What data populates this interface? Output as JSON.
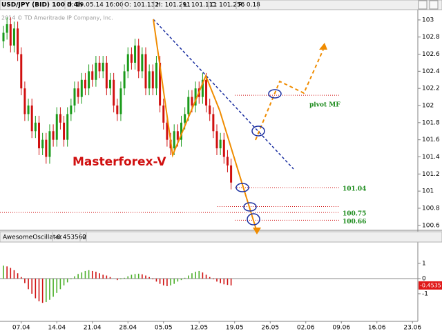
{
  "header": {
    "symbol": "USD/JPY (BID) 100 d 4h",
    "date": "D: 19.05.14 16:00",
    "open": "O: 101.132",
    "high": "H: 101.291",
    "low": "L: 101.111",
    "close": "C: 101.256",
    "range": "R: 0.18"
  },
  "watermark": "2014 © TD Ameritrade IP Company, Inc.",
  "chart_data": [
    {
      "type": "candlestick",
      "annotation": "Masterforex-V",
      "pivot_label": "pivot MF",
      "levels": [
        102.12,
        101.04,
        100.82,
        100.75,
        100.66
      ],
      "labeled_levels": [
        1,
        3,
        4
      ],
      "up_color": "#1a9a1a",
      "down_color": "#d01010",
      "ylim": [
        100.55,
        103.12
      ],
      "yticks": [
        103,
        102.8,
        102.6,
        102.4,
        102.2,
        102,
        101.8,
        101.6,
        101.4,
        101.2,
        101,
        100.8,
        100.6
      ],
      "grid": false,
      "categories": [
        null,
        null,
        null,
        null,
        null,
        "07.04",
        null,
        null,
        null,
        null,
        null,
        null,
        null,
        null,
        null,
        "14.04",
        null,
        null,
        null,
        null,
        null,
        null,
        null,
        null,
        null,
        "21.04",
        null,
        null,
        null,
        null,
        null,
        null,
        null,
        null,
        null,
        "28.04",
        null,
        null,
        null,
        null,
        null,
        null,
        null,
        null,
        null,
        "05.05",
        null,
        null,
        null,
        null,
        null,
        null,
        null,
        null,
        null,
        "12.05",
        null,
        null,
        null,
        null,
        null,
        null,
        null,
        null,
        null,
        "19.05",
        null,
        null,
        null,
        null,
        null,
        null,
        null,
        null,
        null,
        "26.05",
        null,
        null,
        null,
        null,
        null,
        null,
        null,
        null,
        null,
        "02.06",
        null,
        null,
        null,
        null,
        null,
        null,
        null,
        null,
        null,
        "09.06",
        null,
        null,
        null,
        null,
        null,
        null,
        null,
        null,
        null,
        "16.06",
        null,
        null,
        null,
        null,
        null,
        null,
        null,
        null,
        null,
        "23.06"
      ],
      "open": [
        102.75,
        102.85,
        102.95,
        102.7,
        102.9,
        102.6,
        102.2,
        101.9,
        102.0,
        101.7,
        101.8,
        101.5,
        101.6,
        101.4,
        101.7,
        101.6,
        101.9,
        101.8,
        101.6,
        101.9,
        102.0,
        102.2,
        102.1,
        102.3,
        102.2,
        102.4,
        102.3,
        102.5,
        102.4,
        102.5,
        102.2,
        102.3,
        102.0,
        101.9,
        102.2,
        102.4,
        102.6,
        102.5,
        102.7,
        102.4,
        102.6,
        102.2,
        102.4,
        102.2,
        102.5,
        102.0,
        101.8,
        101.6,
        101.5,
        101.7,
        101.6,
        101.8,
        101.9,
        102.1,
        102.0,
        102.2,
        102.1,
        102.3,
        102.0,
        101.9,
        101.7,
        101.5,
        101.6,
        101.4,
        101.3,
        null,
        null,
        null,
        null,
        null,
        null,
        null,
        null,
        null,
        null,
        null,
        null,
        null,
        null,
        null,
        null,
        null,
        null,
        null,
        null,
        null,
        null,
        null,
        null,
        null,
        null,
        null,
        null,
        null,
        null,
        null,
        null,
        null,
        null,
        null,
        null,
        null,
        null,
        null,
        null,
        null,
        null,
        null,
        null,
        null,
        null,
        null,
        null,
        null,
        null,
        null
      ],
      "high": [
        102.93,
        103.03,
        103.03,
        102.98,
        102.98,
        102.68,
        102.28,
        102.08,
        102.08,
        101.88,
        101.88,
        101.68,
        101.68,
        101.78,
        101.78,
        101.98,
        101.98,
        101.88,
        101.98,
        102.08,
        102.28,
        102.28,
        102.38,
        102.38,
        102.48,
        102.48,
        102.58,
        102.58,
        102.58,
        102.58,
        102.38,
        102.38,
        102.08,
        102.28,
        102.48,
        102.68,
        102.68,
        102.78,
        102.78,
        102.68,
        102.68,
        102.48,
        102.48,
        102.58,
        102.58,
        102.08,
        101.88,
        101.68,
        101.78,
        101.78,
        101.88,
        101.98,
        102.18,
        102.18,
        102.28,
        102.28,
        102.38,
        102.38,
        102.08,
        101.98,
        101.78,
        101.68,
        101.68,
        101.48,
        101.38,
        null,
        null,
        null,
        null,
        null,
        null,
        null,
        null,
        null,
        null,
        null,
        null,
        null,
        null,
        null,
        null,
        null,
        null,
        null,
        null,
        null,
        null,
        null,
        null,
        null,
        null,
        null,
        null,
        null,
        null,
        null,
        null,
        null,
        null,
        null,
        null,
        null,
        null,
        null,
        null,
        null,
        null,
        null,
        null,
        null,
        null,
        null,
        null,
        null,
        null,
        null
      ],
      "low": [
        102.67,
        102.77,
        102.62,
        102.62,
        102.52,
        102.12,
        101.82,
        101.82,
        101.62,
        101.62,
        101.42,
        101.42,
        101.32,
        101.32,
        101.52,
        101.52,
        101.72,
        101.52,
        101.52,
        101.82,
        101.92,
        102.02,
        102.02,
        102.12,
        102.12,
        102.22,
        102.22,
        102.32,
        102.32,
        102.12,
        102.12,
        101.92,
        101.82,
        101.82,
        102.12,
        102.32,
        102.42,
        102.42,
        102.32,
        102.32,
        102.12,
        102.12,
        102.12,
        102.12,
        101.92,
        101.72,
        101.52,
        101.42,
        101.42,
        101.52,
        101.52,
        101.72,
        101.82,
        101.92,
        101.92,
        102.02,
        102.02,
        101.92,
        101.82,
        101.62,
        101.42,
        101.42,
        101.32,
        101.22,
        101.02,
        null,
        null,
        null,
        null,
        null,
        null,
        null,
        null,
        null,
        null,
        null,
        null,
        null,
        null,
        null,
        null,
        null,
        null,
        null,
        null,
        null,
        null,
        null,
        null,
        null,
        null,
        null,
        null,
        null,
        null,
        null,
        null,
        null,
        null,
        null,
        null,
        null,
        null,
        null,
        null,
        null,
        null,
        null,
        null,
        null,
        null,
        null,
        null,
        null,
        null,
        null
      ],
      "close": [
        102.85,
        102.95,
        102.7,
        102.9,
        102.6,
        102.2,
        101.9,
        102.0,
        101.7,
        101.8,
        101.5,
        101.6,
        101.4,
        101.7,
        101.6,
        101.9,
        101.8,
        101.6,
        101.9,
        102.0,
        102.2,
        102.1,
        102.3,
        102.2,
        102.4,
        102.3,
        102.5,
        102.4,
        102.5,
        102.2,
        102.3,
        102.0,
        101.9,
        102.2,
        102.4,
        102.6,
        102.5,
        102.7,
        102.4,
        102.6,
        102.2,
        102.4,
        102.2,
        102.5,
        102.0,
        101.8,
        101.6,
        101.5,
        101.7,
        101.6,
        101.8,
        101.9,
        102.1,
        102.0,
        102.2,
        102.1,
        102.3,
        102.0,
        101.9,
        101.7,
        101.5,
        101.6,
        101.4,
        101.3,
        101.1,
        null,
        null,
        null,
        null,
        null,
        null,
        null,
        null,
        null,
        null,
        null,
        null,
        null,
        null,
        null,
        null,
        null,
        null,
        null,
        null,
        null,
        null,
        null,
        null,
        null,
        null,
        null,
        null,
        null,
        null,
        null,
        null,
        null,
        null,
        null,
        null,
        null,
        null,
        null,
        null,
        null,
        null,
        null,
        null,
        null,
        null,
        null,
        null,
        null,
        null,
        null
      ]
    },
    {
      "type": "bar",
      "title": "AwesomeOscillator",
      "indicator_value": -0.453562,
      "indicator_extra": 0,
      "up_color": "#4caf2a",
      "down_color": "#d01010",
      "marker_color": "#e01818",
      "ylim": [
        -2.82,
        2.36
      ],
      "yticks": [
        1,
        0,
        -1
      ],
      "values": [
        0.85,
        0.8,
        0.7,
        0.55,
        0.35,
        0.1,
        -0.3,
        -0.7,
        -1.0,
        -1.3,
        -1.5,
        -1.6,
        -1.55,
        -1.4,
        -1.2,
        -0.95,
        -0.7,
        -0.45,
        -0.25,
        -0.05,
        0.15,
        0.3,
        0.4,
        0.5,
        0.55,
        0.5,
        0.45,
        0.35,
        0.25,
        0.2,
        0.1,
        0.0,
        -0.1,
        -0.05,
        0.05,
        0.15,
        0.25,
        0.3,
        0.32,
        0.28,
        0.2,
        0.1,
        -0.05,
        -0.2,
        -0.35,
        -0.45,
        -0.5,
        -0.45,
        -0.35,
        -0.2,
        -0.1,
        0.05,
        0.2,
        0.35,
        0.45,
        0.5,
        0.4,
        0.25,
        0.1,
        -0.05,
        -0.2,
        -0.3,
        -0.38,
        -0.42,
        -0.4535,
        null,
        null,
        null,
        null,
        null,
        null,
        null,
        null,
        null,
        null,
        null,
        null,
        null,
        null,
        null,
        null,
        null,
        null,
        null,
        null,
        null,
        null,
        null,
        null,
        null,
        null,
        null,
        null,
        null,
        null,
        null,
        null,
        null,
        null,
        null,
        null,
        null,
        null,
        null,
        null,
        null,
        null,
        null,
        null,
        null,
        null,
        null,
        null,
        null,
        null,
        null
      ]
    }
  ]
}
